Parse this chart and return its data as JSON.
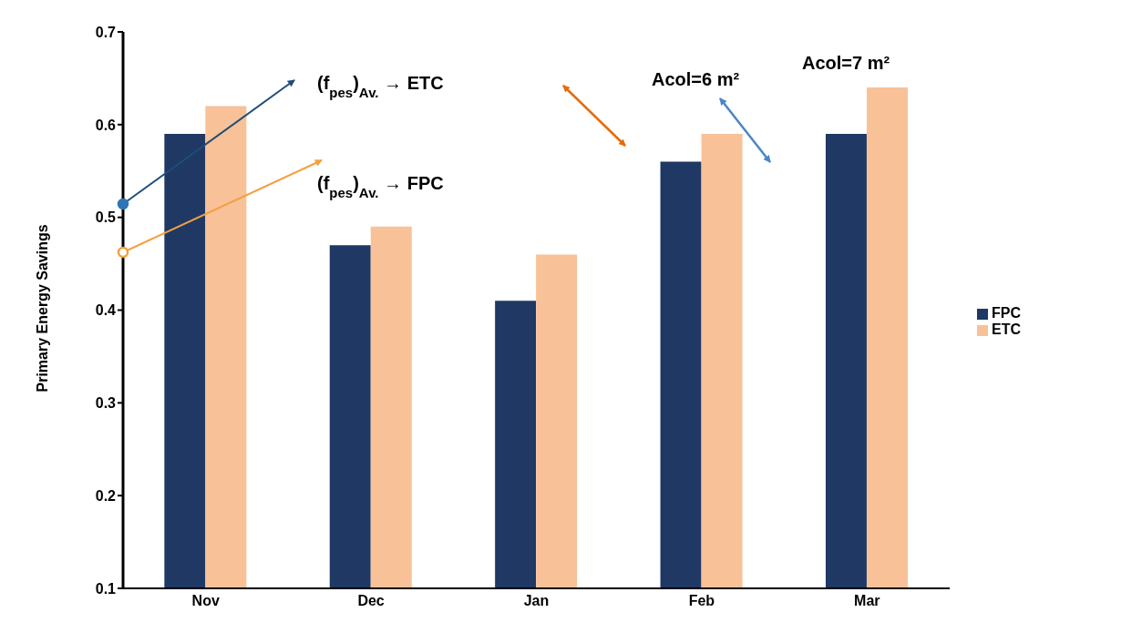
{
  "chart_data": {
    "type": "bar",
    "ylabel": "Primary Energy Savings",
    "categories": [
      "Nov",
      "Dec",
      "Jan",
      "Feb",
      "Mar"
    ],
    "series": [
      {
        "name": "FPC",
        "color": "#1f3864",
        "values": [
          0.59,
          0.47,
          0.41,
          0.56,
          0.59
        ]
      },
      {
        "name": "ETC",
        "color": "#f8c198",
        "values": [
          0.62,
          0.49,
          0.46,
          0.59,
          0.64
        ]
      }
    ],
    "ylim": [
      0.1,
      0.7
    ],
    "yticks": [
      0.1,
      0.2,
      0.3,
      0.4,
      0.5,
      0.6,
      0.7
    ],
    "grid": false,
    "legend": "right",
    "annotations": [
      "(f$_{pes}$)$_{Av.}$ → ETC",
      "(f$_{pes}$)$_{Av.}$ → FPC",
      "Acol=6 m²",
      "Acol=7 m²"
    ]
  }
}
